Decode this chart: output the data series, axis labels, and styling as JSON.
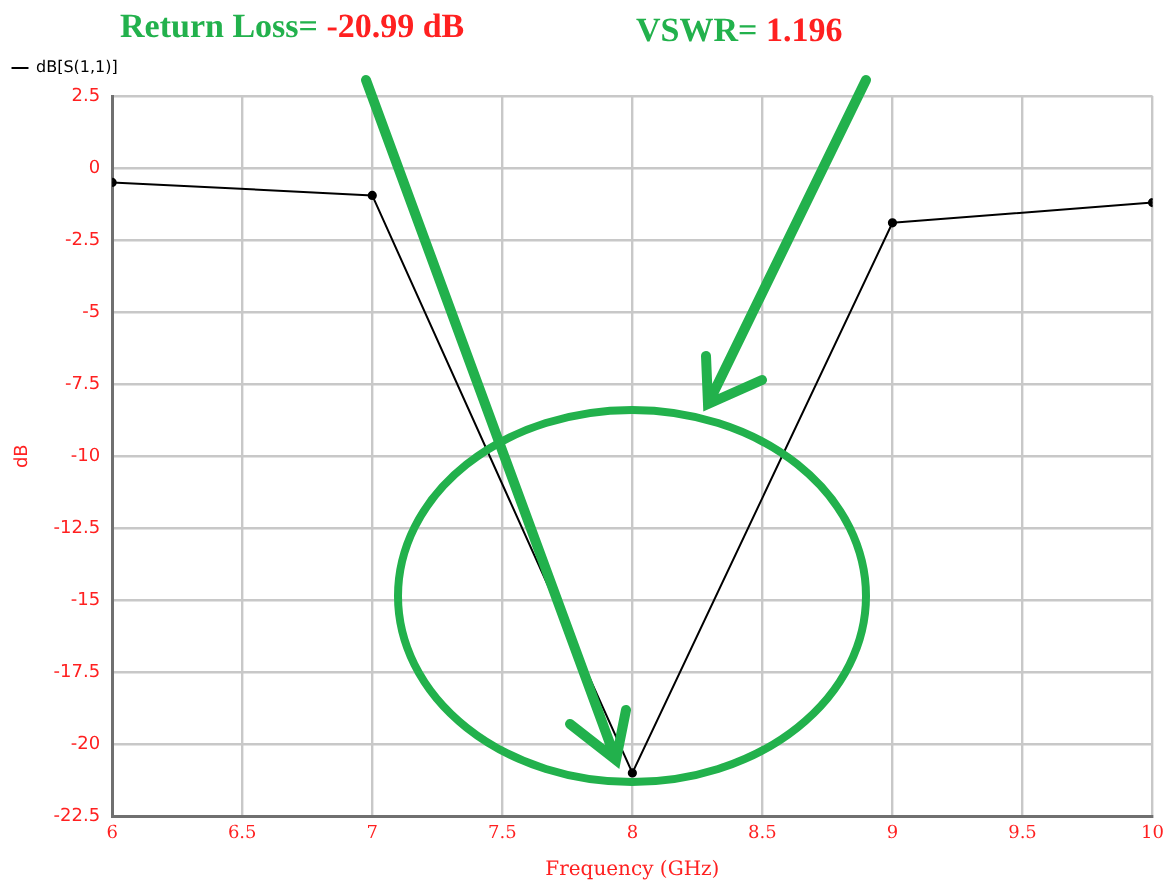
{
  "chart_data": {
    "type": "line",
    "xlabel": "Frequency (GHz)",
    "ylabel": "dB",
    "x": [
      6,
      7,
      8,
      9,
      10
    ],
    "series": [
      {
        "name": "dB[S(1,1)]",
        "color": "#000000",
        "values": [
          -0.5,
          -0.95,
          -20.99,
          -1.9,
          -1.2
        ]
      }
    ],
    "xlim": [
      6,
      10
    ],
    "xticks": [
      6,
      6.5,
      7,
      7.5,
      8,
      8.5,
      9,
      9.5,
      10
    ],
    "ylim": [
      -22.5,
      2.5
    ],
    "yticks": [
      -22.5,
      -20,
      -17.5,
      -15,
      -12.5,
      -10,
      -7.5,
      -5,
      -2.5,
      0,
      2.5
    ],
    "annotations": [
      "Return Loss= -20.99 dB",
      "VSWR= 1.196"
    ],
    "grid": true,
    "legend": "top left",
    "marker": "circle",
    "line_style": "solid"
  }
}
